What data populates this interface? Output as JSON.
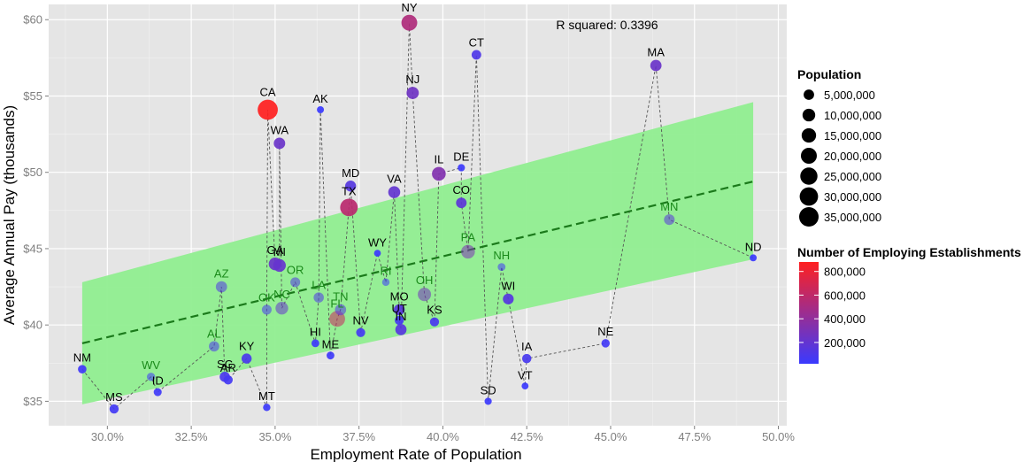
{
  "chart_data": {
    "type": "scatter",
    "xlabel": "Employment Rate of Population",
    "ylabel": "Average Annual Pay (thousands)",
    "xlim": [
      0.2825,
      0.5025
    ],
    "ylim": [
      33.4,
      61.0
    ],
    "x_ticks": [
      {
        "value": 0.3,
        "label": "30.0%"
      },
      {
        "value": 0.325,
        "label": "32.5%"
      },
      {
        "value": 0.35,
        "label": "35.0%"
      },
      {
        "value": 0.375,
        "label": "37.5%"
      },
      {
        "value": 0.4,
        "label": "40.0%"
      },
      {
        "value": 0.425,
        "label": "42.5%"
      },
      {
        "value": 0.45,
        "label": "45.0%"
      },
      {
        "value": 0.475,
        "label": "47.5%"
      },
      {
        "value": 0.5,
        "label": "50.0%"
      }
    ],
    "y_ticks": [
      {
        "value": 35,
        "label": "$35"
      },
      {
        "value": 40,
        "label": "$40"
      },
      {
        "value": 45,
        "label": "$45"
      },
      {
        "value": 50,
        "label": "$50"
      },
      {
        "value": 55,
        "label": "$55"
      },
      {
        "value": 60,
        "label": "$60"
      }
    ],
    "annotation": "R squared:  0.3396",
    "regression": {
      "x_range": [
        0.2925,
        0.4925
      ],
      "line": [
        38.8,
        49.4
      ],
      "band_low": [
        34.8,
        44.3
      ],
      "band_high": [
        42.8,
        54.6
      ],
      "line_color": "#1b7a1b",
      "band_color": "#90ee90"
    },
    "label_colors": {
      "outside": "#000000",
      "inside": "#1a8a1a"
    },
    "size_legend": {
      "title": "Population",
      "entries": [
        {
          "label": "5,000,000",
          "value": 5000000
        },
        {
          "label": "10,000,000",
          "value": 10000000
        },
        {
          "label": "15,000,000",
          "value": 15000000
        },
        {
          "label": "20,000,000",
          "value": 20000000
        },
        {
          "label": "25,000,000",
          "value": 25000000
        },
        {
          "label": "30,000,000",
          "value": 30000000
        },
        {
          "label": "35,000,000",
          "value": 35000000
        }
      ]
    },
    "color_legend": {
      "title": "Number of Employing Establishments",
      "low_color": "#3a3aff",
      "high_color": "#ff2020",
      "range": [
        20000,
        880000
      ],
      "ticks": [
        {
          "label": "800,000",
          "value": 800000
        },
        {
          "label": "600,000",
          "value": 600000
        },
        {
          "label": "400,000",
          "value": 400000
        },
        {
          "label": "200,000",
          "value": 200000
        }
      ]
    },
    "points": [
      {
        "state": "NM",
        "x": 0.2925,
        "y": 37.1,
        "pop": 2080000,
        "est": 45000,
        "inside": false
      },
      {
        "state": "MS",
        "x": 0.302,
        "y": 34.5,
        "pop": 2990000,
        "est": 60000,
        "inside": false
      },
      {
        "state": "WV",
        "x": 0.313,
        "y": 36.6,
        "pop": 1850000,
        "est": 38000,
        "inside": true
      },
      {
        "state": "ID",
        "x": 0.315,
        "y": 35.6,
        "pop": 1600000,
        "est": 45000,
        "inside": false
      },
      {
        "state": "AL",
        "x": 0.3318,
        "y": 38.6,
        "pop": 4830000,
        "est": 85000,
        "inside": true
      },
      {
        "state": "AZ",
        "x": 0.334,
        "y": 42.5,
        "pop": 6630000,
        "est": 120000,
        "inside": true
      },
      {
        "state": "SC",
        "x": 0.335,
        "y": 36.6,
        "pop": 4770000,
        "est": 90000,
        "inside": false
      },
      {
        "state": "AR",
        "x": 0.336,
        "y": 36.4,
        "pop": 2960000,
        "est": 65000,
        "inside": false
      },
      {
        "state": "KY",
        "x": 0.3415,
        "y": 37.8,
        "pop": 4390000,
        "est": 90000,
        "inside": false
      },
      {
        "state": "MT",
        "x": 0.3475,
        "y": 34.6,
        "pop": 1010000,
        "est": 35000,
        "inside": false
      },
      {
        "state": "OK",
        "x": 0.3475,
        "y": 41.0,
        "pop": 3850000,
        "est": 85000,
        "inside": true
      },
      {
        "state": "CA",
        "x": 0.3478,
        "y": 54.1,
        "pop": 38300000,
        "est": 880000,
        "inside": false
      },
      {
        "state": "GA",
        "x": 0.35,
        "y": 44.0,
        "pop": 9990000,
        "est": 220000,
        "inside": false
      },
      {
        "state": "MI",
        "x": 0.3513,
        "y": 43.9,
        "pop": 9890000,
        "est": 210000,
        "inside": false
      },
      {
        "state": "WA",
        "x": 0.3513,
        "y": 51.9,
        "pop": 6970000,
        "est": 230000,
        "inside": false
      },
      {
        "state": "NC",
        "x": 0.352,
        "y": 41.1,
        "pop": 9850000,
        "est": 210000,
        "inside": true
      },
      {
        "state": "OR",
        "x": 0.356,
        "y": 42.8,
        "pop": 3930000,
        "est": 120000,
        "inside": true
      },
      {
        "state": "LA",
        "x": 0.363,
        "y": 41.8,
        "pop": 4620000,
        "est": 110000,
        "inside": true
      },
      {
        "state": "HI",
        "x": 0.362,
        "y": 38.8,
        "pop": 1400000,
        "est": 35000,
        "inside": false
      },
      {
        "state": "AK",
        "x": 0.3635,
        "y": 54.1,
        "pop": 740000,
        "est": 20000,
        "inside": false
      },
      {
        "state": "ME",
        "x": 0.3665,
        "y": 38.0,
        "pop": 1330000,
        "est": 40000,
        "inside": false
      },
      {
        "state": "FL",
        "x": 0.3685,
        "y": 40.4,
        "pop": 19550000,
        "est": 640000,
        "inside": true
      },
      {
        "state": "TN",
        "x": 0.3695,
        "y": 41.0,
        "pop": 6490000,
        "est": 125000,
        "inside": true
      },
      {
        "state": "TX",
        "x": 0.372,
        "y": 47.7,
        "pop": 26450000,
        "est": 580000,
        "inside": false
      },
      {
        "state": "MD",
        "x": 0.3725,
        "y": 49.1,
        "pop": 5930000,
        "est": 140000,
        "inside": false
      },
      {
        "state": "NV",
        "x": 0.3755,
        "y": 39.5,
        "pop": 2790000,
        "est": 65000,
        "inside": false
      },
      {
        "state": "WY",
        "x": 0.3805,
        "y": 44.7,
        "pop": 580000,
        "est": 25000,
        "inside": false
      },
      {
        "state": "RI",
        "x": 0.383,
        "y": 42.8,
        "pop": 1050000,
        "est": 35000,
        "inside": true
      },
      {
        "state": "VA",
        "x": 0.3855,
        "y": 48.7,
        "pop": 8260000,
        "est": 200000,
        "inside": false
      },
      {
        "state": "MO",
        "x": 0.387,
        "y": 41.0,
        "pop": 6040000,
        "est": 150000,
        "inside": false
      },
      {
        "state": "UT",
        "x": 0.387,
        "y": 40.3,
        "pop": 2900000,
        "est": 70000,
        "inside": false
      },
      {
        "state": "IN",
        "x": 0.3875,
        "y": 39.7,
        "pop": 6570000,
        "est": 145000,
        "inside": false
      },
      {
        "state": "NY",
        "x": 0.39,
        "y": 59.8,
        "pop": 19650000,
        "est": 530000,
        "inside": false
      },
      {
        "state": "NJ",
        "x": 0.391,
        "y": 55.2,
        "pop": 8900000,
        "est": 250000,
        "inside": false
      },
      {
        "state": "OH",
        "x": 0.3945,
        "y": 42.0,
        "pop": 11570000,
        "est": 270000,
        "inside": true
      },
      {
        "state": "KS",
        "x": 0.3975,
        "y": 40.2,
        "pop": 2890000,
        "est": 80000,
        "inside": false
      },
      {
        "state": "IL",
        "x": 0.3988,
        "y": 49.9,
        "pop": 12880000,
        "est": 330000,
        "inside": false
      },
      {
        "state": "DE",
        "x": 0.4055,
        "y": 50.3,
        "pop": 930000,
        "est": 30000,
        "inside": false
      },
      {
        "state": "CO",
        "x": 0.4055,
        "y": 48.0,
        "pop": 5270000,
        "est": 170000,
        "inside": false
      },
      {
        "state": "PA",
        "x": 0.4075,
        "y": 44.8,
        "pop": 12770000,
        "est": 310000,
        "inside": true
      },
      {
        "state": "CT",
        "x": 0.41,
        "y": 57.7,
        "pop": 3600000,
        "est": 110000,
        "inside": false
      },
      {
        "state": "SD",
        "x": 0.4135,
        "y": 35.0,
        "pop": 850000,
        "est": 30000,
        "inside": false
      },
      {
        "state": "NH",
        "x": 0.4175,
        "y": 43.8,
        "pop": 1320000,
        "est": 40000,
        "inside": true
      },
      {
        "state": "WI",
        "x": 0.4195,
        "y": 41.7,
        "pop": 5740000,
        "est": 140000,
        "inside": false
      },
      {
        "state": "IA",
        "x": 0.425,
        "y": 37.8,
        "pop": 3090000,
        "est": 80000,
        "inside": false
      },
      {
        "state": "VT",
        "x": 0.4245,
        "y": 36.0,
        "pop": 630000,
        "est": 25000,
        "inside": false
      },
      {
        "state": "NE",
        "x": 0.4485,
        "y": 38.8,
        "pop": 1870000,
        "est": 55000,
        "inside": false
      },
      {
        "state": "MA",
        "x": 0.4635,
        "y": 57.0,
        "pop": 6690000,
        "est": 230000,
        "inside": false
      },
      {
        "state": "MN",
        "x": 0.4675,
        "y": 46.9,
        "pop": 5420000,
        "est": 150000,
        "inside": true
      },
      {
        "state": "ND",
        "x": 0.4925,
        "y": 44.4,
        "pop": 720000,
        "est": 25000,
        "inside": false
      }
    ]
  }
}
